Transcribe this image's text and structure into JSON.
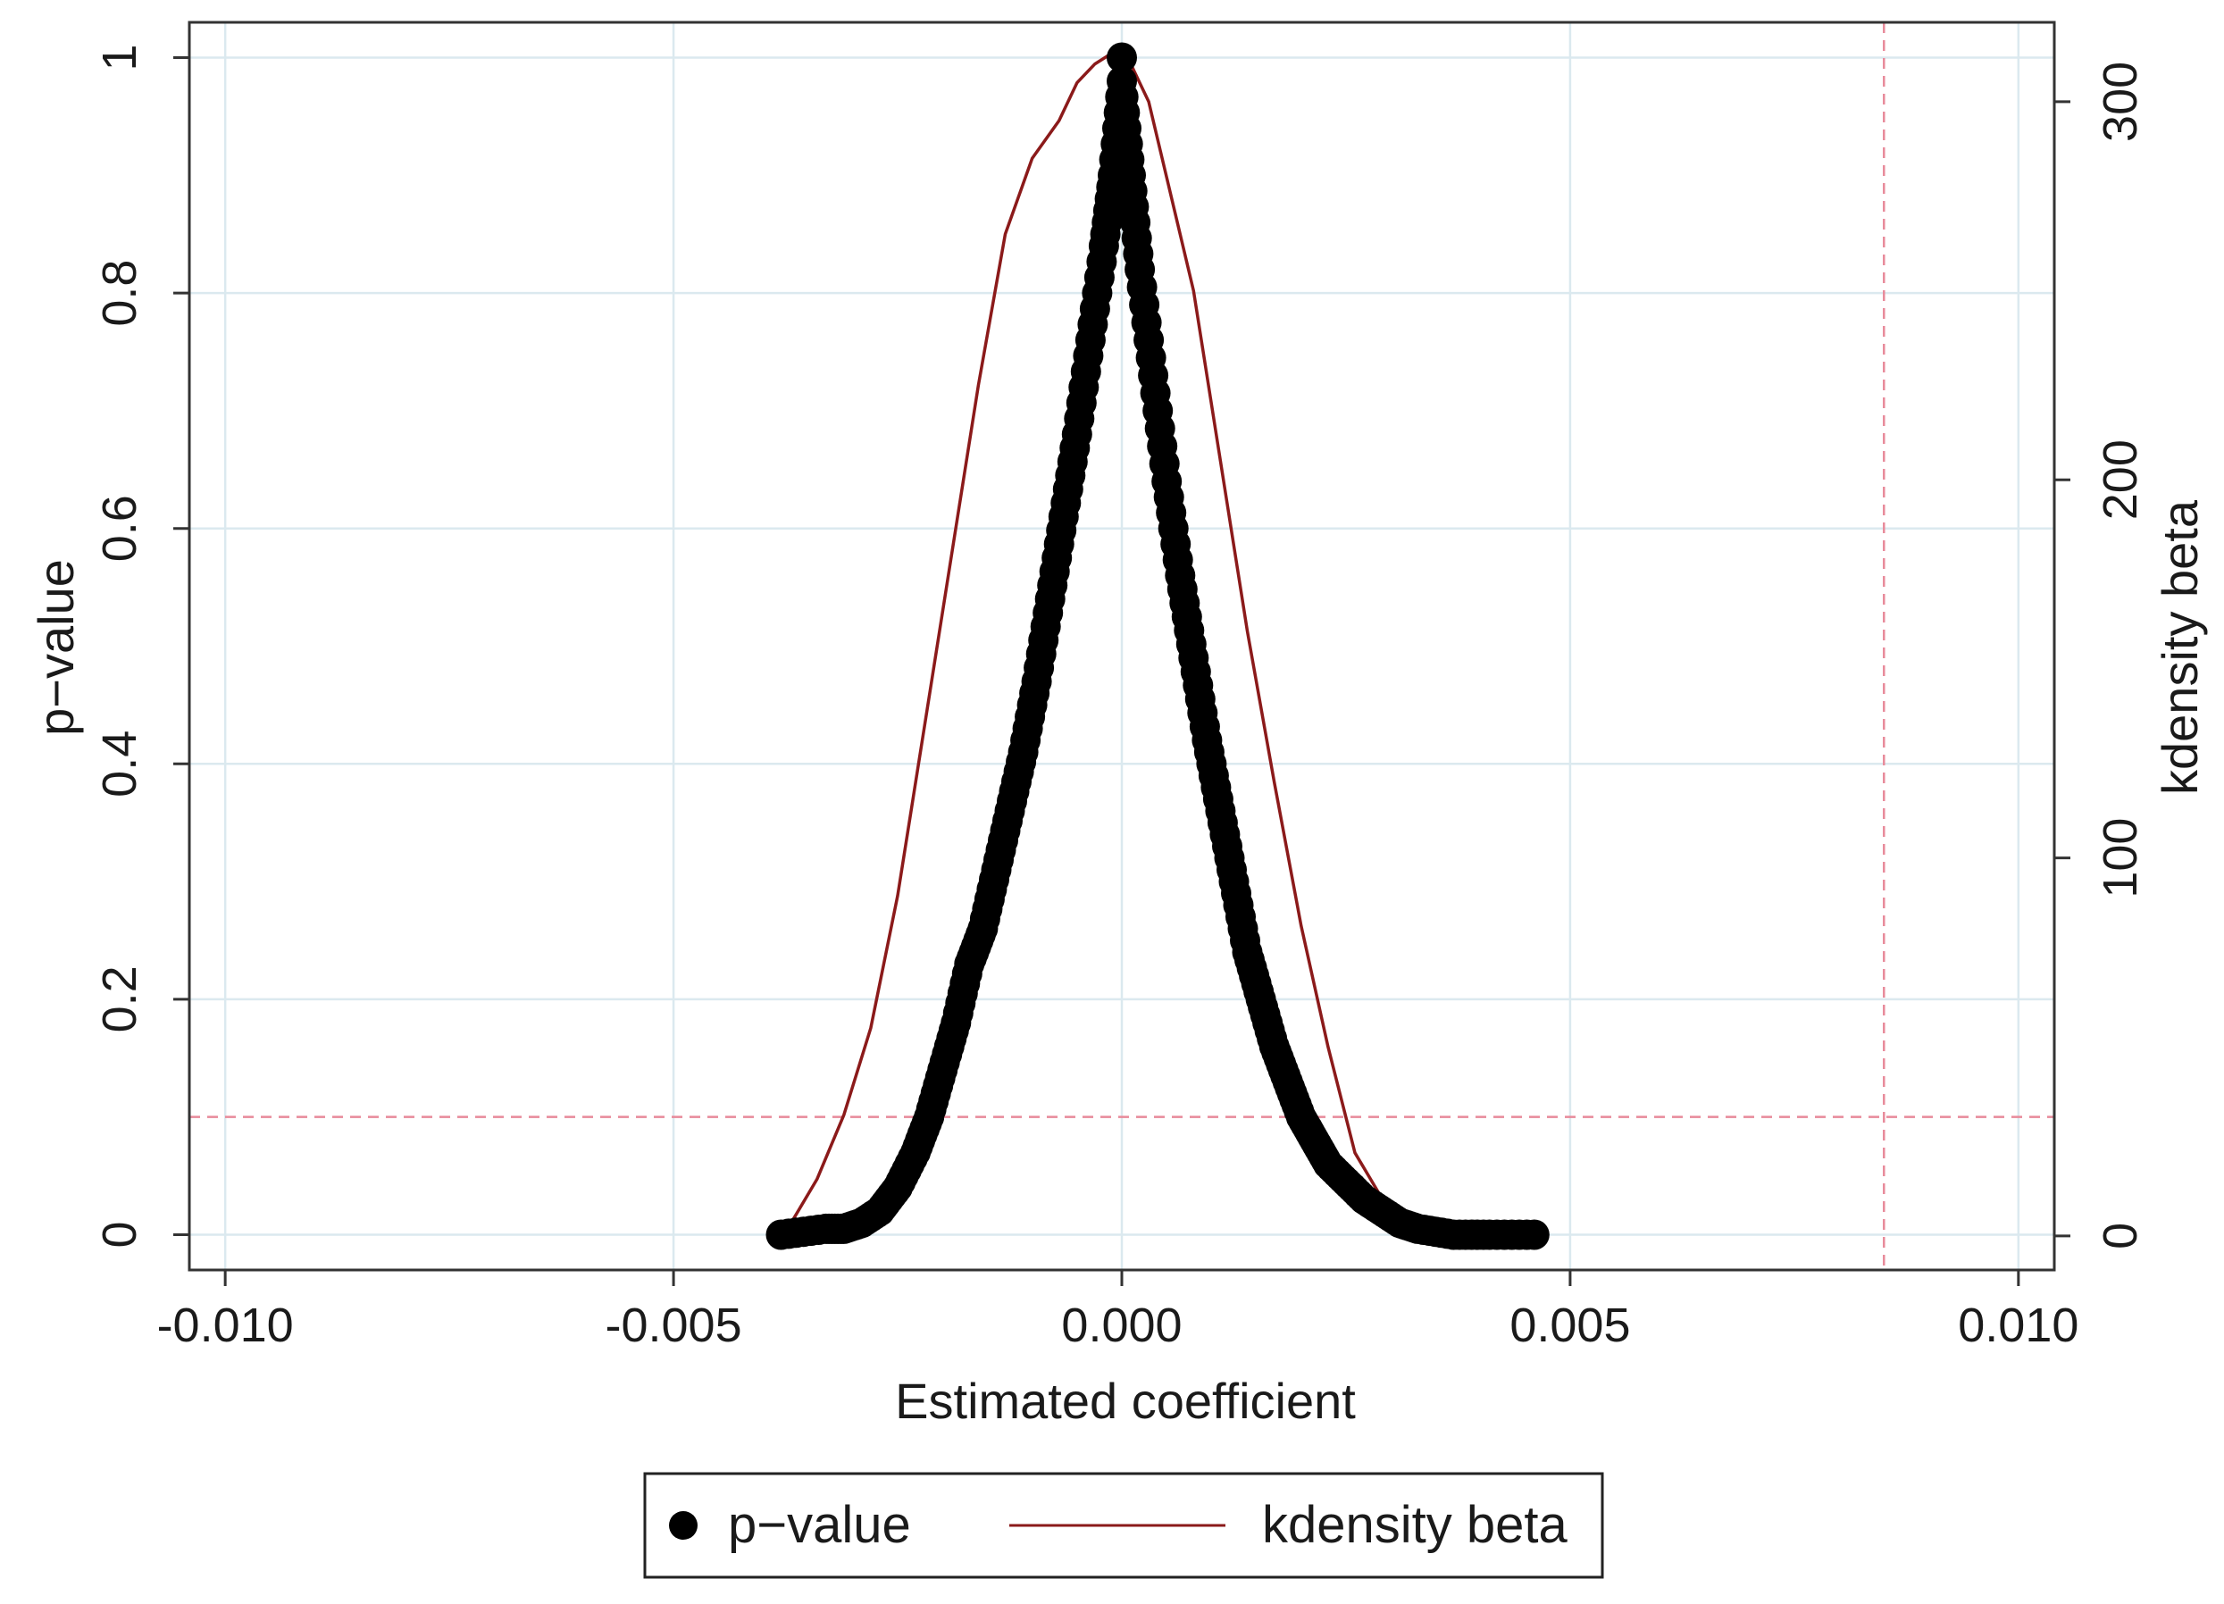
{
  "chart_data": {
    "type": "scatter",
    "xlabel": "Estimated coefficient",
    "ylabel_left": "p−value",
    "ylabel_right": "kdensity beta",
    "xlim": [
      -0.0104,
      0.0104
    ],
    "ylim_left": [
      -0.03,
      1.03
    ],
    "ylim_right": [
      -9,
      321
    ],
    "x_ticks": [
      -0.01,
      -0.005,
      0.0,
      0.005,
      0.01
    ],
    "x_tick_labels": [
      "-0.010",
      "-0.005",
      "0.000",
      "0.005",
      "0.010"
    ],
    "y_left_ticks": [
      0,
      0.2,
      0.4,
      0.6,
      0.8,
      1
    ],
    "y_left_tick_labels": [
      "0",
      "0.2",
      "0.4",
      "0.6",
      "0.8",
      "1"
    ],
    "y_right_ticks": [
      0,
      100,
      200,
      300
    ],
    "y_right_tick_labels": [
      "0",
      "100",
      "200",
      "300"
    ],
    "grid": true,
    "legend_position": "bottom",
    "reference_lines": {
      "y_left": 0.1,
      "x": 0.0085
    },
    "colors": {
      "points": "#000000",
      "density": "#8b1a1a",
      "reference": "#e88a9a",
      "grid": "#dbe9ef",
      "axis": "#333333"
    },
    "series": [
      {
        "name": "p−value",
        "kind": "scatter",
        "axis": "left",
        "x": [
          -0.0038,
          -0.0033,
          -0.0031,
          -0.0029,
          -0.0027,
          -0.0025,
          -0.0023,
          -0.00215,
          -0.002,
          -0.00185,
          -0.0017,
          -0.00155,
          -0.0014,
          -0.00125,
          -0.0011,
          -0.00095,
          -0.0008,
          -0.00065,
          -0.0005,
          -0.00035,
          -0.0002,
          -0.0001,
          0.0,
          0.0001,
          0.0002,
          0.00035,
          0.0005,
          0.00065,
          0.0008,
          0.00095,
          0.0011,
          0.00125,
          0.0014,
          0.00155,
          0.0017,
          0.00185,
          0.002,
          0.00215,
          0.0023,
          0.0025,
          0.0027,
          0.0029,
          0.0031,
          0.0033,
          0.0037,
          0.0041,
          0.0046
        ],
        "y": [
          0.0,
          0.005,
          0.005,
          0.01,
          0.02,
          0.04,
          0.07,
          0.1,
          0.14,
          0.18,
          0.23,
          0.26,
          0.31,
          0.36,
          0.41,
          0.47,
          0.54,
          0.61,
          0.68,
          0.76,
          0.84,
          0.9,
          0.98,
          0.9,
          0.82,
          0.73,
          0.64,
          0.56,
          0.49,
          0.42,
          0.36,
          0.3,
          0.24,
          0.2,
          0.16,
          0.13,
          0.1,
          0.08,
          0.06,
          0.045,
          0.03,
          0.02,
          0.01,
          0.005,
          0.0,
          0.0,
          0.0
        ]
      },
      {
        "name": "kdensity beta",
        "kind": "line",
        "axis": "right",
        "x": [
          -0.0037,
          -0.0034,
          -0.0031,
          -0.0028,
          -0.0025,
          -0.0022,
          -0.0019,
          -0.0016,
          -0.0013,
          -0.001,
          -0.0007,
          -0.0005,
          -0.0003,
          -0.0001,
          0.0,
          0.0001,
          0.0003,
          0.0005,
          0.0008,
          0.0011,
          0.0014,
          0.0017,
          0.002,
          0.0023,
          0.0026,
          0.0029,
          0.0032,
          0.0035,
          0.0039,
          0.0043,
          0.0046
        ],
        "y": [
          3,
          15,
          32,
          55,
          90,
          135,
          180,
          225,
          265,
          285,
          295,
          305,
          310,
          313,
          312,
          310,
          300,
          280,
          250,
          205,
          160,
          120,
          82,
          50,
          22,
          10,
          5,
          4,
          3,
          3,
          3
        ]
      }
    ]
  }
}
